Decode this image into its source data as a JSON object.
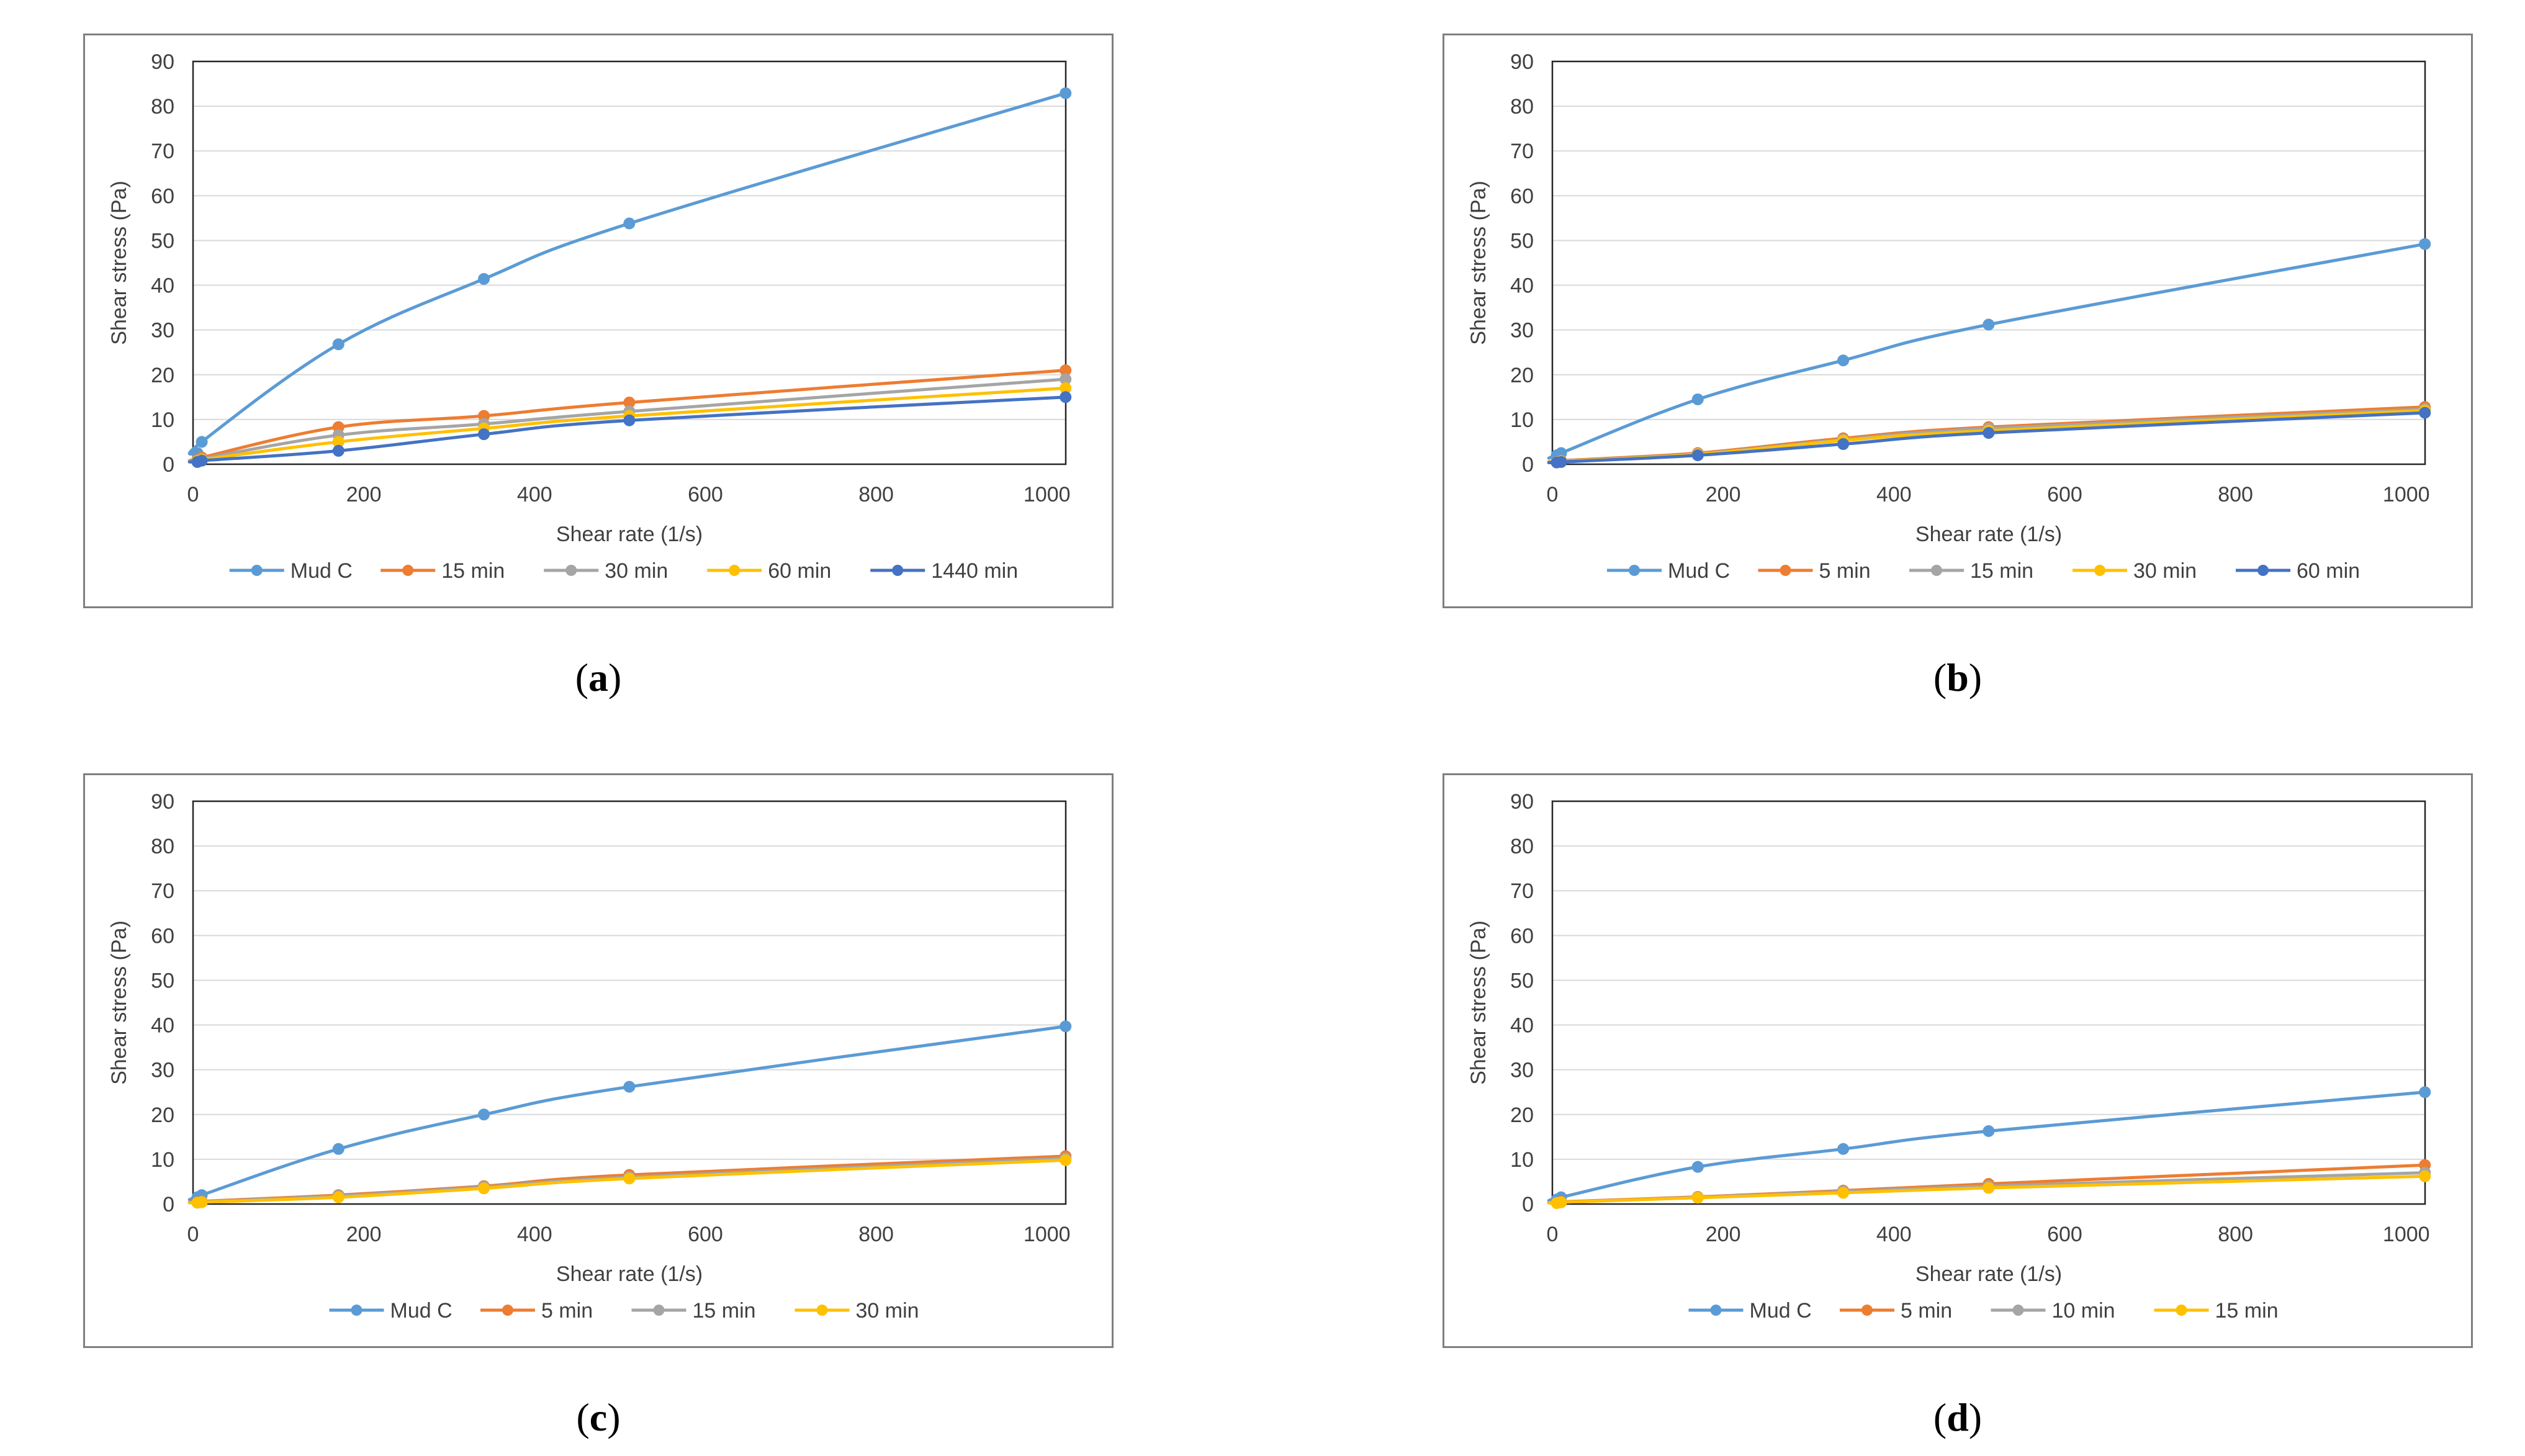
{
  "chart_data": [
    {
      "type": "line",
      "panel_label": "a",
      "xlabel": "Shear rate (1/s)",
      "ylabel": "Shear stress (Pa)",
      "xlim": [
        0,
        1022
      ],
      "ylim": [
        0,
        90
      ],
      "xticks": [
        0,
        200,
        400,
        600,
        800,
        1000
      ],
      "yticks": [
        0,
        10,
        20,
        30,
        40,
        50,
        60,
        70,
        80,
        90
      ],
      "grid": true,
      "legend_position": "bottom",
      "x": [
        5.11,
        10.22,
        170.3,
        340.6,
        510.9,
        1021.8
      ],
      "series": [
        {
          "name": "Mud C",
          "color": "#5B9BD5",
          "values": [
            2.5,
            5.0,
            26.8,
            41.4,
            53.8,
            82.9
          ]
        },
        {
          "name": "15 min",
          "color": "#ED7D31",
          "values": [
            1.0,
            1.5,
            8.3,
            10.8,
            13.8,
            21.0
          ]
        },
        {
          "name": "30 min",
          "color": "#A5A5A5",
          "values": [
            0.8,
            1.2,
            6.5,
            9.0,
            11.8,
            19.0
          ]
        },
        {
          "name": "60 min",
          "color": "#FFC000",
          "values": [
            0.7,
            1.0,
            5.0,
            8.0,
            10.8,
            17.0
          ]
        },
        {
          "name": "1440 min",
          "color": "#4472C4",
          "values": [
            0.5,
            0.8,
            3.0,
            6.7,
            9.8,
            15.0
          ]
        }
      ]
    },
    {
      "type": "line",
      "panel_label": "b",
      "xlabel": "Shear rate (1/s)",
      "ylabel": "Shear stress (Pa)",
      "xlim": [
        0,
        1022
      ],
      "ylim": [
        0,
        90
      ],
      "xticks": [
        0,
        200,
        400,
        600,
        800,
        1000
      ],
      "yticks": [
        0,
        10,
        20,
        30,
        40,
        50,
        60,
        70,
        80,
        90
      ],
      "grid": true,
      "legend_position": "bottom",
      "x": [
        5.11,
        10.22,
        170.3,
        340.6,
        510.9,
        1021.8
      ],
      "series": [
        {
          "name": "Mud C",
          "color": "#5B9BD5",
          "values": [
            2.0,
            2.5,
            14.5,
            23.2,
            31.2,
            49.2
          ]
        },
        {
          "name": "5 min",
          "color": "#ED7D31",
          "values": [
            0.5,
            0.8,
            2.5,
            5.8,
            8.3,
            12.8
          ]
        },
        {
          "name": "15 min",
          "color": "#A5A5A5",
          "values": [
            0.5,
            0.7,
            2.3,
            5.5,
            8.0,
            12.3
          ]
        },
        {
          "name": "30 min",
          "color": "#FFC000",
          "values": [
            0.4,
            0.6,
            2.2,
            5.3,
            7.5,
            12.0
          ]
        },
        {
          "name": "60 min",
          "color": "#4472C4",
          "values": [
            0.4,
            0.5,
            2.0,
            4.5,
            7.0,
            11.5
          ]
        }
      ]
    },
    {
      "type": "line",
      "panel_label": "c",
      "xlabel": "Shear rate (1/s)",
      "ylabel": "Shear stress (Pa)",
      "xlim": [
        0,
        1022
      ],
      "ylim": [
        0,
        90
      ],
      "xticks": [
        0,
        200,
        400,
        600,
        800,
        1000
      ],
      "yticks": [
        0,
        10,
        20,
        30,
        40,
        50,
        60,
        70,
        80,
        90
      ],
      "grid": true,
      "legend_position": "bottom",
      "x": [
        5.11,
        10.22,
        170.3,
        340.6,
        510.9,
        1021.8
      ],
      "series": [
        {
          "name": "Mud C",
          "color": "#5B9BD5",
          "values": [
            1.5,
            2.0,
            12.3,
            20.0,
            26.2,
            39.7
          ]
        },
        {
          "name": "5 min",
          "color": "#ED7D31",
          "values": [
            0.4,
            0.6,
            2.0,
            4.0,
            6.5,
            10.7
          ]
        },
        {
          "name": "15 min",
          "color": "#A5A5A5",
          "values": [
            0.3,
            0.5,
            1.8,
            3.8,
            6.0,
            10.2
          ]
        },
        {
          "name": "30 min",
          "color": "#FFC000",
          "values": [
            0.3,
            0.4,
            1.5,
            3.5,
            5.7,
            9.8
          ]
        }
      ]
    },
    {
      "type": "line",
      "panel_label": "d",
      "xlabel": "Shear rate (1/s)",
      "ylabel": "Shear stress (Pa)",
      "xlim": [
        0,
        1022
      ],
      "ylim": [
        0,
        90
      ],
      "xticks": [
        0,
        200,
        400,
        600,
        800,
        1000
      ],
      "yticks": [
        0,
        10,
        20,
        30,
        40,
        50,
        60,
        70,
        80,
        90
      ],
      "grid": true,
      "legend_position": "bottom",
      "x": [
        5.11,
        10.22,
        170.3,
        340.6,
        510.9,
        1021.8
      ],
      "series": [
        {
          "name": "Mud C",
          "color": "#5B9BD5",
          "values": [
            1.0,
            1.5,
            8.3,
            12.3,
            16.3,
            25.0
          ]
        },
        {
          "name": "5 min",
          "color": "#ED7D31",
          "values": [
            0.3,
            0.5,
            1.6,
            3.0,
            4.5,
            8.7
          ]
        },
        {
          "name": "10 min",
          "color": "#A5A5A5",
          "values": [
            0.3,
            0.4,
            1.5,
            2.8,
            4.0,
            7.0
          ]
        },
        {
          "name": "15 min",
          "color": "#FFC000",
          "values": [
            0.2,
            0.4,
            1.4,
            2.5,
            3.6,
            6.2
          ]
        }
      ]
    }
  ]
}
